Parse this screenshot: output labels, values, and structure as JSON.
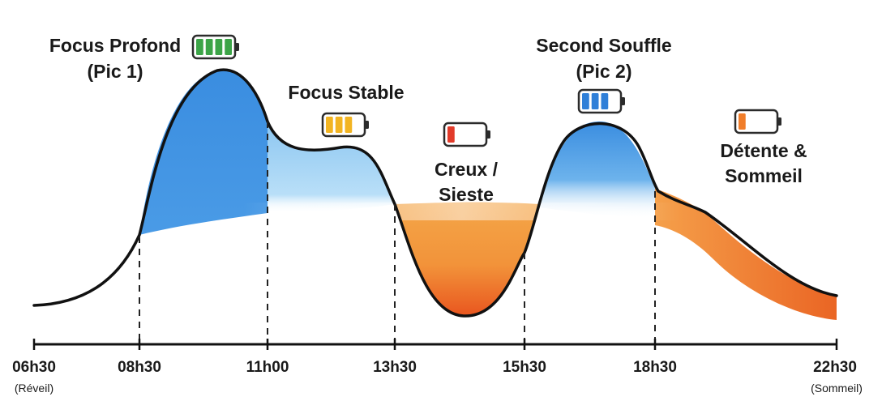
{
  "phases": [
    {
      "id": "pic1",
      "lines": [
        "Focus Profond",
        "(Pic 1)"
      ],
      "battery": {
        "level": 4,
        "color": "#3ca447"
      }
    },
    {
      "id": "stable",
      "lines": [
        "Focus Stable"
      ],
      "battery": {
        "level": 3,
        "color": "#f2b421"
      }
    },
    {
      "id": "creux",
      "lines": [
        "Creux /",
        "Sieste"
      ],
      "battery": {
        "level": 1,
        "color": "#e23b2a"
      }
    },
    {
      "id": "pic2",
      "lines": [
        "Second Souffle",
        "(Pic 2)"
      ],
      "battery": {
        "level": 3,
        "color": "#2f7fd8"
      }
    },
    {
      "id": "detente",
      "lines": [
        "Détente &",
        "Sommeil"
      ],
      "battery": {
        "level": 1,
        "color": "#f07d2a"
      }
    }
  ],
  "axis": {
    "ticks": [
      "06h30",
      "08h30",
      "11h00",
      "13h30",
      "15h30",
      "18h30",
      "22h30"
    ],
    "start_note": "(Réveil)",
    "end_note": "(Sommeil)"
  },
  "colors": {
    "focus_blue": "#3b8ee2",
    "light_blue": "#9fcff3",
    "dip_orange": "#f39a3a",
    "deep_orange": "#ea6a24",
    "curve": "#111111"
  }
}
